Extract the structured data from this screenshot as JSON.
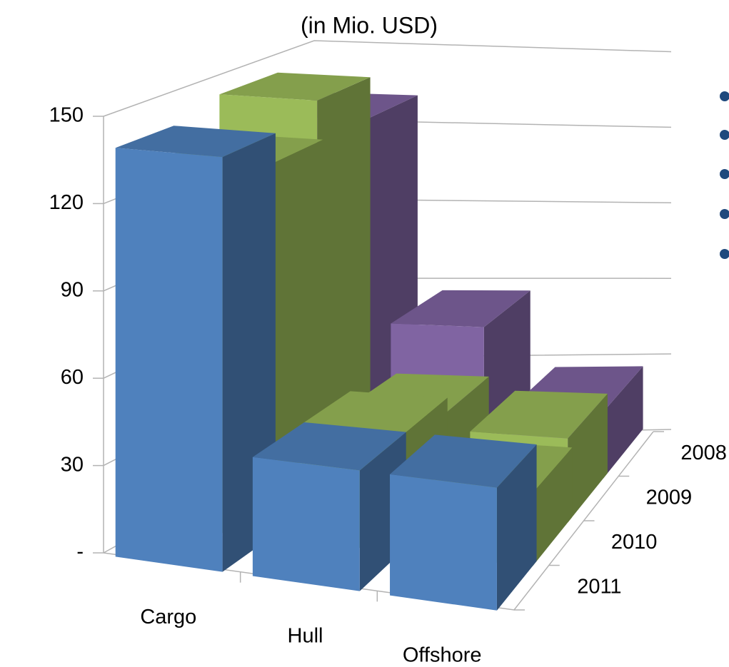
{
  "chart_data": {
    "type": "bar3d",
    "title": "(in Mio. USD)",
    "categories": [
      "Cargo",
      "Hull",
      "Offshore"
    ],
    "series": [
      {
        "name": "2008",
        "color": "#8064a2",
        "values": [
          130,
          55,
          25
        ]
      },
      {
        "name": "2009",
        "color": "#9bbb59",
        "values": [
          145,
          35,
          30
        ]
      },
      {
        "name": "2010",
        "color": "#9bbb59",
        "values": [
          130,
          40,
          25
        ]
      },
      {
        "name": "2011",
        "color": "#4f81bd",
        "values": [
          140,
          40,
          40
        ]
      }
    ],
    "ylim": [
      0,
      150
    ],
    "yticks": [
      {
        "value": 0,
        "label": "-"
      },
      30,
      60,
      90,
      120,
      150
    ],
    "grid": true
  }
}
